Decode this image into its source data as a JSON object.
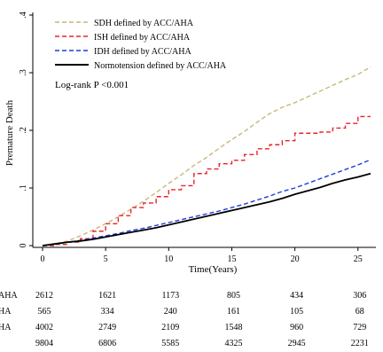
{
  "chart_data": {
    "type": "line",
    "title": "",
    "xlabel": "Time(Years)",
    "ylabel": "Premature Death",
    "xlim": [
      0,
      26
    ],
    "ylim": [
      0,
      0.4
    ],
    "x_ticks": [
      0,
      5,
      10,
      15,
      20,
      25
    ],
    "x_tick_labels": [
      "0",
      "5",
      "10",
      "15",
      "20",
      "25"
    ],
    "y_ticks": [
      0,
      0.1,
      0.2,
      0.3,
      0.4
    ],
    "y_tick_labels": [
      "0",
      ".1",
      ".2",
      ".3",
      ".4"
    ],
    "grid": false,
    "legend_position": "top-left",
    "annotation": "Log-rank P <0.001",
    "series": [
      {
        "name": "SDH defined by ACC/AHA",
        "color": "#c8b87a",
        "dash": "dashed",
        "step": false,
        "points": [
          [
            0,
            0
          ],
          [
            1,
            0.003
          ],
          [
            2,
            0.008
          ],
          [
            3,
            0.017
          ],
          [
            4,
            0.027
          ],
          [
            5,
            0.038
          ],
          [
            6,
            0.05
          ],
          [
            7,
            0.063
          ],
          [
            8,
            0.077
          ],
          [
            9,
            0.092
          ],
          [
            10,
            0.108
          ],
          [
            11,
            0.123
          ],
          [
            12,
            0.139
          ],
          [
            13,
            0.153
          ],
          [
            14,
            0.169
          ],
          [
            15,
            0.184
          ],
          [
            16,
            0.198
          ],
          [
            17,
            0.214
          ],
          [
            18,
            0.229
          ],
          [
            19,
            0.24
          ],
          [
            20,
            0.248
          ],
          [
            21,
            0.258
          ],
          [
            22,
            0.268
          ],
          [
            23,
            0.278
          ],
          [
            24,
            0.288
          ],
          [
            25,
            0.297
          ],
          [
            26,
            0.31
          ]
        ]
      },
      {
        "name": "ISH defined by ACC/AHA",
        "color": "#e8232a",
        "dash": "dashed",
        "step": true,
        "points": [
          [
            0,
            0
          ],
          [
            1,
            0.002
          ],
          [
            2,
            0.006
          ],
          [
            3,
            0.012
          ],
          [
            4,
            0.025
          ],
          [
            5,
            0.038
          ],
          [
            6,
            0.052
          ],
          [
            7,
            0.066
          ],
          [
            8,
            0.074
          ],
          [
            9,
            0.085
          ],
          [
            10,
            0.097
          ],
          [
            11,
            0.104
          ],
          [
            12,
            0.125
          ],
          [
            13,
            0.133
          ],
          [
            14,
            0.142
          ],
          [
            15,
            0.148
          ],
          [
            16,
            0.158
          ],
          [
            17,
            0.168
          ],
          [
            18,
            0.175
          ],
          [
            19,
            0.182
          ],
          [
            20,
            0.195
          ],
          [
            22,
            0.197
          ],
          [
            23,
            0.204
          ],
          [
            24,
            0.212
          ],
          [
            25,
            0.224
          ],
          [
            26,
            0.224
          ]
        ]
      },
      {
        "name": "IDH defined by ACC/AHA",
        "color": "#1f3ad8",
        "dash": "dashed",
        "step": false,
        "points": [
          [
            0,
            0
          ],
          [
            1,
            0.003
          ],
          [
            2,
            0.006
          ],
          [
            3,
            0.009
          ],
          [
            4,
            0.013
          ],
          [
            5,
            0.017
          ],
          [
            6,
            0.021
          ],
          [
            7,
            0.026
          ],
          [
            8,
            0.03
          ],
          [
            9,
            0.035
          ],
          [
            10,
            0.04
          ],
          [
            11,
            0.045
          ],
          [
            12,
            0.05
          ],
          [
            13,
            0.055
          ],
          [
            14,
            0.06
          ],
          [
            15,
            0.066
          ],
          [
            16,
            0.072
          ],
          [
            17,
            0.079
          ],
          [
            18,
            0.086
          ],
          [
            19,
            0.094
          ],
          [
            20,
            0.1
          ],
          [
            21,
            0.108
          ],
          [
            22,
            0.116
          ],
          [
            23,
            0.124
          ],
          [
            24,
            0.132
          ],
          [
            25,
            0.14
          ],
          [
            26,
            0.149
          ]
        ]
      },
      {
        "name": "Normotension defined by ACC/AHA",
        "color": "#000000",
        "dash": "solid",
        "step": false,
        "points": [
          [
            0,
            0
          ],
          [
            1,
            0.003
          ],
          [
            2,
            0.006
          ],
          [
            3,
            0.008
          ],
          [
            4,
            0.011
          ],
          [
            5,
            0.015
          ],
          [
            6,
            0.019
          ],
          [
            7,
            0.023
          ],
          [
            8,
            0.027
          ],
          [
            9,
            0.031
          ],
          [
            10,
            0.036
          ],
          [
            11,
            0.041
          ],
          [
            12,
            0.046
          ],
          [
            13,
            0.051
          ],
          [
            14,
            0.056
          ],
          [
            15,
            0.061
          ],
          [
            16,
            0.066
          ],
          [
            17,
            0.071
          ],
          [
            18,
            0.076
          ],
          [
            19,
            0.082
          ],
          [
            20,
            0.089
          ],
          [
            21,
            0.095
          ],
          [
            22,
            0.101
          ],
          [
            23,
            0.108
          ],
          [
            24,
            0.114
          ],
          [
            25,
            0.119
          ],
          [
            26,
            0.125
          ]
        ]
      }
    ],
    "risk_table": {
      "columns": [
        0,
        5,
        10,
        15,
        20,
        25
      ],
      "rows": [
        {
          "label": "AHA",
          "values": [
            "2612",
            "1621",
            "1173",
            "805",
            "434",
            "306"
          ]
        },
        {
          "label": "HA",
          "values": [
            "565",
            "334",
            "240",
            "161",
            "105",
            "68"
          ]
        },
        {
          "label": "HA",
          "values": [
            "4002",
            "2749",
            "2109",
            "1548",
            "960",
            "729"
          ]
        },
        {
          "label": "",
          "values": [
            "9804",
            "6806",
            "5585",
            "4325",
            "2945",
            "2231"
          ]
        }
      ]
    }
  }
}
